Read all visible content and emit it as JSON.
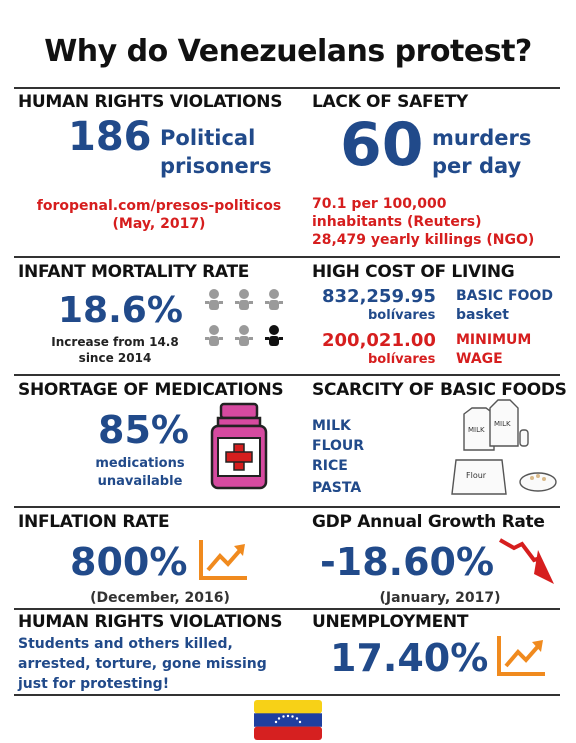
{
  "title": "Why do Venezuelans protest?",
  "s1": {
    "heading": "HUMAN RIGHTS VIOLATIONS",
    "number": "186",
    "label1": "Political",
    "label2": "prisoners",
    "source1": "foropenal.com/presos-politicos",
    "source2": "(May, 2017)"
  },
  "s2": {
    "heading": "LACK OF SAFETY",
    "number": "60",
    "label1": "murders",
    "label2": "per day",
    "note1": "70.1 per 100,000",
    "note2": "inhabitants (Reuters)",
    "note3": "28,479 yearly killings (NGO)"
  },
  "s3": {
    "heading": "INFANT MORTALITY RATE",
    "number": "18.6%",
    "note1": "Increase from 14.8",
    "note2": "since 2014"
  },
  "s4": {
    "heading": "HIGH COST OF LIVING",
    "value1": "832,259.95",
    "unit1": "bolívares",
    "label1a": "BASIC FOOD",
    "label1b": "basket",
    "value2": "200,021.00",
    "unit2": "bolívares",
    "label2a": "MINIMUM",
    "label2b": "WAGE"
  },
  "s5": {
    "heading": "SHORTAGE OF MEDICATIONS",
    "number": "85%",
    "label1": "medications",
    "label2": "unavailable"
  },
  "s6": {
    "heading": "SCARCITY OF BASIC FOODS",
    "items": [
      "MILK",
      "FLOUR",
      "RICE",
      "PASTA"
    ],
    "milk_label": "MILK",
    "flour_label": "Flour"
  },
  "s7": {
    "heading": "INFLATION RATE",
    "number": "800%",
    "date": "(December, 2016)"
  },
  "s8": {
    "heading": "GDP Annual Growth Rate",
    "number": "-18.60%",
    "date": "(January, 2017)"
  },
  "s9": {
    "heading": "HUMAN RIGHTS VIOLATIONS",
    "line1": "Students and others killed,",
    "line2": "arrested, torture, gone missing",
    "line3": "just for protesting!"
  },
  "s10": {
    "heading": "UNEMPLOYMENT",
    "number": "17.40%"
  },
  "colors": {
    "blue": "#214a8a",
    "red": "#d61e1e",
    "orange": "#f08a1e",
    "flag_yellow": "#f7d117",
    "flag_blue": "#1f3fa0",
    "flag_red": "#d62020"
  }
}
